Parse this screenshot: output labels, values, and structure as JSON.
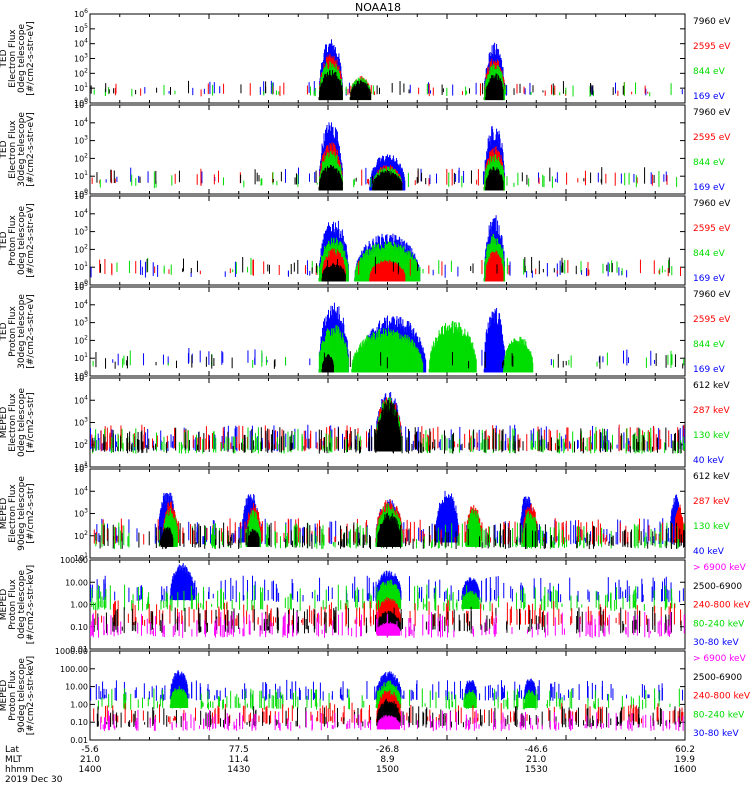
{
  "figure": {
    "title": "NOAA18",
    "date": "2019 Dec 30"
  },
  "axis_footer": {
    "row_labels": [
      "Lat",
      "MLT",
      "hhmm"
    ],
    "ticks": [
      {
        "lat": "-5.6",
        "mlt": "21.0",
        "hhmm": "1400"
      },
      {
        "lat": "77.5",
        "mlt": "11.4",
        "hhmm": "1430"
      },
      {
        "lat": "-26.8",
        "mlt": "8.9",
        "hhmm": "1500"
      },
      {
        "lat": "-46.6",
        "mlt": "21.0",
        "hhmm": "1530"
      },
      {
        "lat": "60.2",
        "mlt": "19.9",
        "hhmm": "1600"
      }
    ]
  },
  "colors": {
    "black": "#000000",
    "red": "#ff0000",
    "green": "#00dd00",
    "blue": "#0000ff",
    "magenta": "#ff00ff"
  },
  "chart_data": [
    {
      "type": "scatter",
      "scale": "log",
      "ylabel": [
        "TED",
        "Electron Flux",
        "0deg telescope",
        "[#/cm2-s-str-eV]"
      ],
      "yticks": [
        "10^0",
        "10^1",
        "10^2",
        "10^3",
        "10^4",
        "10^5",
        "10^6"
      ],
      "ylim": [
        0,
        6
      ],
      "legend": [
        {
          "label": "7960 eV",
          "color": "black"
        },
        {
          "label": "2595 eV",
          "color": "red"
        },
        {
          "label": "844 eV",
          "color": "green"
        },
        {
          "label": "169 eV",
          "color": "blue"
        }
      ],
      "series": [
        {
          "color": "blue",
          "blobs": [
            {
              "t": 0.405,
              "w": 0.04,
              "peak": 4.2
            },
            {
              "t": 0.68,
              "w": 0.035,
              "peak": 3.9
            }
          ]
        },
        {
          "color": "red",
          "blobs": [
            {
              "t": 0.405,
              "w": 0.04,
              "peak": 3.2
            },
            {
              "t": 0.455,
              "w": 0.035,
              "peak": 1.8
            },
            {
              "t": 0.68,
              "w": 0.035,
              "peak": 3.0
            }
          ]
        },
        {
          "color": "green",
          "blobs": [
            {
              "t": 0.405,
              "w": 0.04,
              "peak": 2.8
            },
            {
              "t": 0.455,
              "w": 0.035,
              "peak": 1.7
            },
            {
              "t": 0.68,
              "w": 0.035,
              "peak": 2.6
            }
          ]
        },
        {
          "color": "black",
          "blobs": [
            {
              "t": 0.405,
              "w": 0.04,
              "peak": 2.2
            },
            {
              "t": 0.455,
              "w": 0.035,
              "peak": 1.5
            },
            {
              "t": 0.68,
              "w": 0.03,
              "peak": 2.0
            }
          ]
        }
      ]
    },
    {
      "type": "scatter",
      "scale": "log",
      "ylabel": [
        "TED",
        "Electron Flux",
        "30deg telescope",
        "[#/cm2-s-str-eV]"
      ],
      "yticks": [
        "10^0",
        "10^1",
        "10^2",
        "10^3",
        "10^4",
        "10^5"
      ],
      "ylim": [
        0,
        5
      ],
      "legend": [
        {
          "label": "7960 eV",
          "color": "black"
        },
        {
          "label": "2595 eV",
          "color": "red"
        },
        {
          "label": "844 eV",
          "color": "green"
        },
        {
          "label": "169 eV",
          "color": "blue"
        }
      ],
      "series": [
        {
          "color": "blue",
          "blobs": [
            {
              "t": 0.405,
              "w": 0.04,
              "peak": 4.0
            },
            {
              "t": 0.5,
              "w": 0.06,
              "peak": 2.2
            },
            {
              "t": 0.68,
              "w": 0.035,
              "peak": 3.8
            }
          ]
        },
        {
          "color": "red",
          "blobs": [
            {
              "t": 0.405,
              "w": 0.04,
              "peak": 2.8
            },
            {
              "t": 0.5,
              "w": 0.05,
              "peak": 1.6
            },
            {
              "t": 0.68,
              "w": 0.035,
              "peak": 2.6
            }
          ]
        },
        {
          "color": "green",
          "blobs": [
            {
              "t": 0.405,
              "w": 0.04,
              "peak": 2.4
            },
            {
              "t": 0.5,
              "w": 0.05,
              "peak": 1.5
            },
            {
              "t": 0.68,
              "w": 0.035,
              "peak": 2.2
            }
          ]
        },
        {
          "color": "black",
          "blobs": [
            {
              "t": 0.405,
              "w": 0.04,
              "peak": 1.6
            },
            {
              "t": 0.5,
              "w": 0.05,
              "peak": 1.3
            },
            {
              "t": 0.68,
              "w": 0.03,
              "peak": 1.5
            }
          ]
        }
      ]
    },
    {
      "type": "scatter",
      "scale": "log",
      "ylabel": [
        "TED",
        "Proton Flux",
        "0deg telescope",
        "[#/cm2-s-str-eV]"
      ],
      "yticks": [
        "10^0",
        "10^1",
        "10^2",
        "10^3",
        "10^4",
        "10^5"
      ],
      "ylim": [
        0,
        5
      ],
      "legend": [
        {
          "label": "7960 eV",
          "color": "black"
        },
        {
          "label": "2595 eV",
          "color": "red"
        },
        {
          "label": "844 eV",
          "color": "green"
        },
        {
          "label": "169 eV",
          "color": "blue"
        }
      ],
      "series": [
        {
          "color": "blue",
          "blobs": [
            {
              "t": 0.41,
              "w": 0.05,
              "peak": 3.6
            },
            {
              "t": 0.5,
              "w": 0.11,
              "peak": 2.8
            },
            {
              "t": 0.68,
              "w": 0.035,
              "peak": 3.8
            }
          ]
        },
        {
          "color": "green",
          "blobs": [
            {
              "t": 0.41,
              "w": 0.05,
              "peak": 2.6
            },
            {
              "t": 0.5,
              "w": 0.11,
              "peak": 2.4
            },
            {
              "t": 0.68,
              "w": 0.035,
              "peak": 2.8
            }
          ]
        },
        {
          "color": "red",
          "blobs": [
            {
              "t": 0.41,
              "w": 0.04,
              "peak": 2.0
            },
            {
              "t": 0.5,
              "w": 0.06,
              "peak": 1.4
            },
            {
              "t": 0.68,
              "w": 0.03,
              "peak": 2.0
            }
          ]
        },
        {
          "color": "black",
          "blobs": [
            {
              "t": 0.41,
              "w": 0.04,
              "peak": 1.2
            }
          ]
        }
      ]
    },
    {
      "type": "scatter",
      "scale": "log",
      "ylabel": [
        "TED",
        "Proton Flux",
        "30deg telescope",
        "[#/cm2-s-str-eV]"
      ],
      "yticks": [
        "10^0",
        "10^1",
        "10^2",
        "10^3",
        "10^4",
        "10^5"
      ],
      "ylim": [
        0,
        5
      ],
      "legend": [
        {
          "label": "7960 eV",
          "color": "black"
        },
        {
          "label": "2595 eV",
          "color": "red"
        },
        {
          "label": "844 eV",
          "color": "green"
        },
        {
          "label": "169 eV",
          "color": "blue"
        }
      ],
      "series": [
        {
          "color": "blue",
          "blobs": [
            {
              "t": 0.41,
              "w": 0.05,
              "peak": 4.0
            },
            {
              "t": 0.51,
              "w": 0.11,
              "peak": 3.3
            },
            {
              "t": 0.68,
              "w": 0.035,
              "peak": 3.8
            }
          ]
        },
        {
          "color": "green",
          "blobs": [
            {
              "t": 0.41,
              "w": 0.05,
              "peak": 2.8
            },
            {
              "t": 0.5,
              "w": 0.12,
              "peak": 2.6
            },
            {
              "t": 0.61,
              "w": 0.08,
              "peak": 3.0
            },
            {
              "t": 0.72,
              "w": 0.05,
              "peak": 2.2
            }
          ]
        },
        {
          "color": "black",
          "blobs": [
            {
              "t": 0.4,
              "w": 0.02,
              "peak": 1.2
            }
          ]
        }
      ]
    },
    {
      "type": "scatter",
      "scale": "log",
      "ylabel": [
        "MEPED",
        "Electron Flux",
        "0deg telescope",
        "[#/cm2-s-str]"
      ],
      "yticks": [
        "10^1",
        "10^2",
        "10^3",
        "10^4",
        "10^5"
      ],
      "ylim": [
        1,
        5
      ],
      "legend": [
        {
          "label": "612 keV",
          "color": "black"
        },
        {
          "label": "287 keV",
          "color": "red"
        },
        {
          "label": "130 keV",
          "color": "green"
        },
        {
          "label": "40 keV",
          "color": "blue"
        }
      ],
      "series": [
        {
          "color": "blue",
          "floor": 2.0,
          "blobs": [
            {
              "t": 0.502,
              "w": 0.045,
              "peak": 4.3
            }
          ]
        },
        {
          "color": "red",
          "floor": 2.0,
          "blobs": [
            {
              "t": 0.502,
              "w": 0.044,
              "peak": 4.15
            }
          ]
        },
        {
          "color": "green",
          "floor": 1.9,
          "blobs": [
            {
              "t": 0.502,
              "w": 0.043,
              "peak": 4.05
            }
          ]
        },
        {
          "color": "black",
          "floor": 1.9,
          "blobs": [
            {
              "t": 0.502,
              "w": 0.042,
              "peak": 3.95
            }
          ]
        }
      ]
    },
    {
      "type": "scatter",
      "scale": "log",
      "ylabel": [
        "MEPED",
        "Electron Flux",
        "90deg telescope",
        "[#/cm2-s-str]"
      ],
      "yticks": [
        "10^1",
        "10^2",
        "10^3",
        "10^4",
        "10^5"
      ],
      "ylim": [
        1,
        5
      ],
      "legend": [
        {
          "label": "612 keV",
          "color": "black"
        },
        {
          "label": "287 keV",
          "color": "red"
        },
        {
          "label": "130 keV",
          "color": "green"
        },
        {
          "label": "40 keV",
          "color": "blue"
        }
      ],
      "series": [
        {
          "color": "blue",
          "floor": 1.9,
          "blobs": [
            {
              "t": 0.13,
              "w": 0.03,
              "peak": 4.0
            },
            {
              "t": 0.27,
              "w": 0.03,
              "peak": 3.9
            },
            {
              "t": 0.503,
              "w": 0.045,
              "peak": 3.6
            },
            {
              "t": 0.6,
              "w": 0.04,
              "peak": 4.0
            },
            {
              "t": 0.735,
              "w": 0.025,
              "peak": 3.9
            },
            {
              "t": 0.985,
              "w": 0.02,
              "peak": 3.8
            }
          ]
        },
        {
          "color": "red",
          "floor": 1.9,
          "blobs": [
            {
              "t": 0.135,
              "w": 0.025,
              "peak": 3.5
            },
            {
              "t": 0.275,
              "w": 0.025,
              "peak": 3.4
            },
            {
              "t": 0.503,
              "w": 0.045,
              "peak": 3.6
            },
            {
              "t": 0.645,
              "w": 0.025,
              "peak": 3.4
            },
            {
              "t": 0.74,
              "w": 0.025,
              "peak": 3.4
            },
            {
              "t": 0.99,
              "w": 0.015,
              "peak": 3.4
            }
          ]
        },
        {
          "color": "green",
          "floor": 1.7,
          "blobs": [
            {
              "t": 0.135,
              "w": 0.025,
              "peak": 3.2
            },
            {
              "t": 0.275,
              "w": 0.025,
              "peak": 3.1
            },
            {
              "t": 0.503,
              "w": 0.045,
              "peak": 3.4
            },
            {
              "t": 0.645,
              "w": 0.025,
              "peak": 3.2
            },
            {
              "t": 0.74,
              "w": 0.025,
              "peak": 3.1
            }
          ]
        },
        {
          "color": "black",
          "floor": 1.7,
          "blobs": [
            {
              "t": 0.13,
              "w": 0.02,
              "peak": 2.4
            },
            {
              "t": 0.275,
              "w": 0.02,
              "peak": 2.3
            },
            {
              "t": 0.503,
              "w": 0.04,
              "peak": 3.0
            }
          ]
        }
      ]
    },
    {
      "type": "scatter",
      "scale": "log",
      "ylabel": [
        "MEPED",
        "Proton Flux",
        "0deg telescope",
        "[#/cm2-s-str-keV]"
      ],
      "yticks": [
        "0.01",
        "0.10",
        "1.00",
        "10.00",
        "100.00"
      ],
      "ylim": [
        -2,
        2
      ],
      "legend": [
        {
          "label": "> 6900 keV",
          "color": "magenta"
        },
        {
          "label": "2500-6900",
          "color": "black"
        },
        {
          "label": "240-800 keV",
          "color": "red"
        },
        {
          "label": "80-240 keV",
          "color": "green"
        },
        {
          "label": "30-80 keV",
          "color": "blue"
        }
      ],
      "series": [
        {
          "color": "blue",
          "floor": 0.4,
          "blobs": [
            {
              "t": 0.155,
              "w": 0.04,
              "peak": 1.8
            },
            {
              "t": 0.502,
              "w": 0.043,
              "peak": 1.5
            },
            {
              "t": 0.64,
              "w": 0.03,
              "peak": 1.2
            }
          ]
        },
        {
          "color": "green",
          "floor": 0.0,
          "blobs": [
            {
              "t": 0.502,
              "w": 0.042,
              "peak": 1.1
            },
            {
              "t": 0.64,
              "w": 0.03,
              "peak": 0.6
            }
          ]
        },
        {
          "color": "red",
          "floor": -0.7,
          "blobs": [
            {
              "t": 0.502,
              "w": 0.041,
              "peak": 0.3
            }
          ]
        },
        {
          "color": "black",
          "floor": -1.0,
          "blobs": [
            {
              "t": 0.502,
              "w": 0.04,
              "peak": -0.3
            }
          ]
        },
        {
          "color": "magenta",
          "floor": -1.2,
          "blobs": [
            {
              "t": 0.502,
              "w": 0.038,
              "peak": -0.8
            }
          ]
        }
      ]
    },
    {
      "type": "scatter",
      "scale": "log",
      "ylabel": [
        "MEPED",
        "Proton Flux",
        "90deg telescope",
        "[#/cm2-s-str-keV]"
      ],
      "yticks": [
        "0.01",
        "0.10",
        "1.00",
        "10.00",
        "100.00",
        "1000.00"
      ],
      "ylim": [
        -2,
        3
      ],
      "legend": [
        {
          "label": "> 6900 keV",
          "color": "magenta"
        },
        {
          "label": "2500-6900",
          "color": "black"
        },
        {
          "label": "240-800 keV",
          "color": "red"
        },
        {
          "label": "80-240 keV",
          "color": "green"
        },
        {
          "label": "30-80 keV",
          "color": "blue"
        }
      ],
      "series": [
        {
          "color": "blue",
          "floor": 0.5,
          "blobs": [
            {
              "t": 0.15,
              "w": 0.03,
              "peak": 1.9
            },
            {
              "t": 0.502,
              "w": 0.043,
              "peak": 1.8
            },
            {
              "t": 0.64,
              "w": 0.02,
              "peak": 1.4
            },
            {
              "t": 0.74,
              "w": 0.02,
              "peak": 1.5
            }
          ]
        },
        {
          "color": "green",
          "floor": 0.0,
          "blobs": [
            {
              "t": 0.15,
              "w": 0.03,
              "peak": 1.0
            },
            {
              "t": 0.502,
              "w": 0.042,
              "peak": 1.3
            },
            {
              "t": 0.64,
              "w": 0.02,
              "peak": 0.8
            },
            {
              "t": 0.74,
              "w": 0.02,
              "peak": 0.8
            }
          ]
        },
        {
          "color": "red",
          "floor": -0.8,
          "blobs": [
            {
              "t": 0.502,
              "w": 0.041,
              "peak": 0.8
            }
          ]
        },
        {
          "color": "black",
          "floor": -1.0,
          "blobs": [
            {
              "t": 0.502,
              "w": 0.04,
              "peak": 0.3
            }
          ]
        },
        {
          "color": "magenta",
          "floor": -1.2,
          "blobs": [
            {
              "t": 0.502,
              "w": 0.038,
              "peak": -0.6
            }
          ]
        }
      ]
    }
  ]
}
